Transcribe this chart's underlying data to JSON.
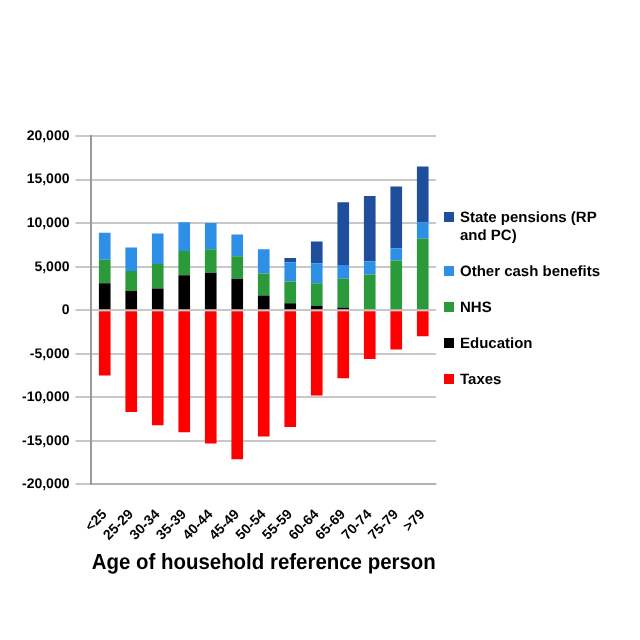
{
  "chart_data": {
    "type": "bar",
    "stacked": true,
    "xlabel": "Age of household reference person",
    "categories": [
      "<25",
      "25-29",
      "30-34",
      "35-39",
      "40-44",
      "45-49",
      "50-54",
      "55-59",
      "60-64",
      "65-69",
      "70-74",
      "75-79",
      ">79"
    ],
    "series": [
      {
        "name": "Taxes",
        "color": "#ff0000",
        "values": [
          -7500,
          -11700,
          -13200,
          -14000,
          -15300,
          -17100,
          -14500,
          -13400,
          -9800,
          -7800,
          -5600,
          -4500,
          -3000
        ]
      },
      {
        "name": "Education",
        "color": "#000000",
        "values": [
          3100,
          2200,
          2500,
          4000,
          4300,
          3600,
          1700,
          800,
          500,
          300,
          null,
          null,
          null
        ]
      },
      {
        "name": "NHS",
        "color": "#2a9a3a",
        "values": [
          2700,
          2300,
          2800,
          2800,
          2700,
          2600,
          2500,
          2500,
          2600,
          3300,
          4100,
          5700,
          8200
        ]
      },
      {
        "name": "Other cash benefits",
        "color": "#2e8fe6",
        "values": [
          3100,
          2700,
          3500,
          3300,
          3000,
          2500,
          2800,
          2200,
          2300,
          1600,
          1500,
          1400,
          1900
        ]
      },
      {
        "name": "State pensions (RP and PC)",
        "color": "#1f4e9c",
        "values": [
          0,
          0,
          0,
          0,
          0,
          0,
          0,
          500,
          2500,
          7200,
          7500,
          7100,
          6400
        ]
      }
    ],
    "ylim": [
      -20000,
      20000
    ],
    "yticks": [
      {
        "value": -20000,
        "label": "-20,000"
      },
      {
        "value": -15000,
        "label": "-15,000"
      },
      {
        "value": -10000,
        "label": "-10,000"
      },
      {
        "value": -5000,
        "label": "-5,000"
      },
      0,
      {
        "value": 5000,
        "label": "5,000"
      },
      {
        "value": 10000,
        "label": "10,000"
      },
      {
        "value": 15000,
        "label": "15,000"
      },
      {
        "value": 20000,
        "label": "20,000"
      }
    ],
    "grid": "y",
    "legend": "right"
  }
}
